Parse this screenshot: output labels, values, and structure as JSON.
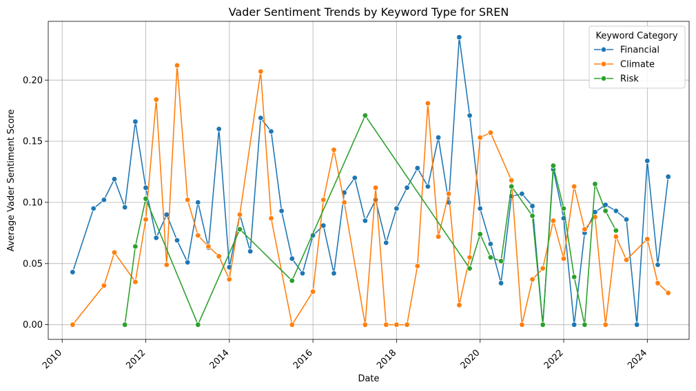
{
  "chart_data": {
    "type": "line",
    "title": "Vader Sentiment Trends by Keyword Type for SREN",
    "xlabel": "Date",
    "ylabel": "Average Vader Sentiment Score",
    "x_ticks": [
      "2010",
      "2012",
      "2014",
      "2016",
      "2018",
      "2020",
      "2022",
      "2024"
    ],
    "y_ticks": [
      "0.00",
      "0.05",
      "0.10",
      "0.15",
      "0.20"
    ],
    "xlim": [
      "2009-09",
      "2025-01"
    ],
    "ylim": [
      -0.012,
      0.248
    ],
    "grid": true,
    "legend": {
      "title": "Keyword Category",
      "placement": "top-right"
    },
    "series": [
      {
        "name": "Financial",
        "color": "#1f77b4",
        "points": [
          [
            "2010-04",
            0.043
          ],
          [
            "2010-10",
            0.095
          ],
          [
            "2011-01",
            0.102
          ],
          [
            "2011-04",
            0.119
          ],
          [
            "2011-07",
            0.096
          ],
          [
            "2011-10",
            0.166
          ],
          [
            "2012-01",
            0.112
          ],
          [
            "2012-04",
            0.071
          ],
          [
            "2012-07",
            0.09
          ],
          [
            "2012-10",
            0.069
          ],
          [
            "2013-01",
            0.051
          ],
          [
            "2013-04",
            0.1
          ],
          [
            "2013-07",
            0.063
          ],
          [
            "2013-10",
            0.16
          ],
          [
            "2014-01",
            0.047
          ],
          [
            "2014-04",
            0.09
          ],
          [
            "2014-07",
            0.06
          ],
          [
            "2014-10",
            0.169
          ],
          [
            "2015-01",
            0.158
          ],
          [
            "2015-04",
            0.093
          ],
          [
            "2015-07",
            0.054
          ],
          [
            "2015-10",
            0.042
          ],
          [
            "2016-01",
            0.073
          ],
          [
            "2016-04",
            0.081
          ],
          [
            "2016-07",
            0.042
          ],
          [
            "2016-10",
            0.108
          ],
          [
            "2017-01",
            0.12
          ],
          [
            "2017-04",
            0.085
          ],
          [
            "2017-07",
            0.102
          ],
          [
            "2017-10",
            0.067
          ],
          [
            "2018-01",
            0.095
          ],
          [
            "2018-04",
            0.112
          ],
          [
            "2018-07",
            0.128
          ],
          [
            "2018-10",
            0.113
          ],
          [
            "2019-01",
            0.153
          ],
          [
            "2019-04",
            0.1
          ],
          [
            "2019-07",
            0.235
          ],
          [
            "2019-10",
            0.171
          ],
          [
            "2020-01",
            0.095
          ],
          [
            "2020-04",
            0.066
          ],
          [
            "2020-07",
            0.034
          ],
          [
            "2020-10",
            0.105
          ],
          [
            "2021-01",
            0.107
          ],
          [
            "2021-04",
            0.097
          ],
          [
            "2021-07",
            0.0
          ],
          [
            "2021-10",
            0.127
          ],
          [
            "2022-01",
            0.087
          ],
          [
            "2022-04",
            0.0
          ],
          [
            "2022-07",
            0.075
          ],
          [
            "2022-10",
            0.092
          ],
          [
            "2023-01",
            0.098
          ],
          [
            "2023-04",
            0.093
          ],
          [
            "2023-07",
            0.086
          ],
          [
            "2023-10",
            0.0
          ],
          [
            "2024-01",
            0.134
          ],
          [
            "2024-04",
            0.049
          ],
          [
            "2024-07",
            0.121
          ]
        ]
      },
      {
        "name": "Climate",
        "color": "#ff7f0e",
        "points": [
          [
            "2010-04",
            0.0
          ],
          [
            "2011-01",
            0.032
          ],
          [
            "2011-04",
            0.059
          ],
          [
            "2011-10",
            0.035
          ],
          [
            "2012-01",
            0.086
          ],
          [
            "2012-04",
            0.184
          ],
          [
            "2012-07",
            0.049
          ],
          [
            "2012-10",
            0.212
          ],
          [
            "2013-01",
            0.102
          ],
          [
            "2013-04",
            0.073
          ],
          [
            "2013-07",
            0.064
          ],
          [
            "2013-10",
            0.056
          ],
          [
            "2014-01",
            0.037
          ],
          [
            "2014-04",
            0.09
          ],
          [
            "2014-10",
            0.207
          ],
          [
            "2015-01",
            0.087
          ],
          [
            "2015-07",
            0.0
          ],
          [
            "2016-01",
            0.027
          ],
          [
            "2016-04",
            0.102
          ],
          [
            "2016-07",
            0.143
          ],
          [
            "2016-10",
            0.1
          ],
          [
            "2017-04",
            0.0
          ],
          [
            "2017-07",
            0.112
          ],
          [
            "2017-10",
            0.0
          ],
          [
            "2018-01",
            0.0
          ],
          [
            "2018-04",
            0.0
          ],
          [
            "2018-07",
            0.048
          ],
          [
            "2018-10",
            0.181
          ],
          [
            "2019-01",
            0.072
          ],
          [
            "2019-04",
            0.107
          ],
          [
            "2019-07",
            0.016
          ],
          [
            "2019-10",
            0.055
          ],
          [
            "2020-01",
            0.153
          ],
          [
            "2020-04",
            0.157
          ],
          [
            "2020-10",
            0.118
          ],
          [
            "2021-01",
            0.0
          ],
          [
            "2021-04",
            0.037
          ],
          [
            "2021-07",
            0.046
          ],
          [
            "2021-10",
            0.085
          ],
          [
            "2022-01",
            0.054
          ],
          [
            "2022-04",
            0.113
          ],
          [
            "2022-07",
            0.078
          ],
          [
            "2022-10",
            0.088
          ],
          [
            "2023-01",
            0.0
          ],
          [
            "2023-04",
            0.072
          ],
          [
            "2023-07",
            0.053
          ],
          [
            "2024-01",
            0.07
          ],
          [
            "2024-04",
            0.034
          ],
          [
            "2024-07",
            0.026
          ]
        ]
      },
      {
        "name": "Risk",
        "color": "#2ca02c",
        "points": [
          [
            "2011-07",
            0.0
          ],
          [
            "2011-10",
            0.064
          ],
          [
            "2012-01",
            0.103
          ],
          [
            "2013-04",
            0.0
          ],
          [
            "2014-04",
            0.078
          ],
          [
            "2015-07",
            0.036
          ],
          [
            "2017-04",
            0.171
          ],
          [
            "2019-10",
            0.046
          ],
          [
            "2020-01",
            0.074
          ],
          [
            "2020-04",
            0.055
          ],
          [
            "2020-07",
            0.052
          ],
          [
            "2020-10",
            0.113
          ],
          [
            "2021-04",
            0.089
          ],
          [
            "2021-07",
            0.0
          ],
          [
            "2021-10",
            0.13
          ],
          [
            "2022-01",
            0.095
          ],
          [
            "2022-04",
            0.039
          ],
          [
            "2022-07",
            0.0
          ],
          [
            "2022-10",
            0.115
          ],
          [
            "2023-01",
            0.093
          ],
          [
            "2023-04",
            0.077
          ]
        ]
      }
    ]
  }
}
